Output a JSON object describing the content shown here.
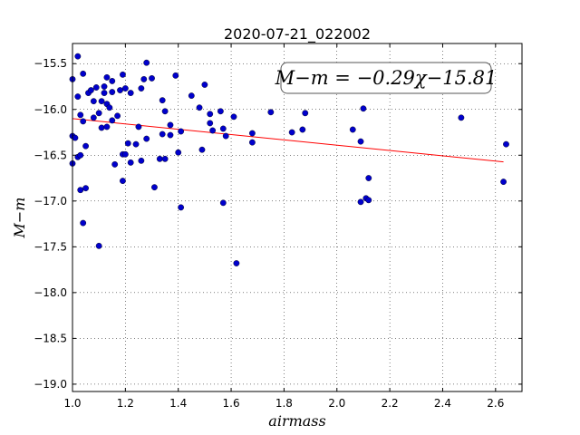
{
  "chart_data": {
    "type": "scatter",
    "title": "2020-07-21_022002",
    "xlabel": "airmass",
    "ylabel": "M−m",
    "xlim": [
      1.0,
      2.7
    ],
    "ylim": [
      -19.08,
      -15.28
    ],
    "x_ticks": [
      1.0,
      1.2,
      1.4,
      1.6,
      1.8,
      2.0,
      2.2,
      2.4,
      2.6
    ],
    "x_tick_labels": [
      "1.0",
      "1.2",
      "1.4",
      "1.6",
      "1.8",
      "2.0",
      "2.2",
      "2.4",
      "2.6"
    ],
    "y_ticks": [
      -15.5,
      -16.0,
      -16.5,
      -17.0,
      -17.5,
      -18.0,
      -18.5,
      -19.0
    ],
    "y_tick_labels": [
      "−15.5",
      "−16.0",
      "−16.5",
      "−17.0",
      "−17.5",
      "−18.0",
      "−18.5",
      "−19.0"
    ],
    "grid": true,
    "annotation": "M−m = −0.29χ−15.81",
    "point_color": "#0000cc",
    "fit_color": "#ff0000",
    "fit_line": {
      "slope": -0.29,
      "intercept": -15.81,
      "x_range": [
        1.0,
        2.63
      ]
    },
    "points": [
      [
        1.0,
        -15.67
      ],
      [
        1.0,
        -16.29
      ],
      [
        1.0,
        -16.59
      ],
      [
        1.01,
        -16.31
      ],
      [
        1.02,
        -15.42
      ],
      [
        1.02,
        -15.86
      ],
      [
        1.02,
        -16.52
      ],
      [
        1.03,
        -16.06
      ],
      [
        1.03,
        -16.5
      ],
      [
        1.03,
        -16.88
      ],
      [
        1.04,
        -15.61
      ],
      [
        1.04,
        -16.13
      ],
      [
        1.04,
        -17.24
      ],
      [
        1.05,
        -16.4
      ],
      [
        1.05,
        -16.86
      ],
      [
        1.06,
        -15.82
      ],
      [
        1.07,
        -15.79
      ],
      [
        1.08,
        -15.91
      ],
      [
        1.08,
        -16.09
      ],
      [
        1.09,
        -15.76
      ],
      [
        1.1,
        -16.04
      ],
      [
        1.1,
        -17.49
      ],
      [
        1.11,
        -15.91
      ],
      [
        1.11,
        -16.2
      ],
      [
        1.12,
        -15.75
      ],
      [
        1.12,
        -15.82
      ],
      [
        1.13,
        -15.94
      ],
      [
        1.13,
        -16.19
      ],
      [
        1.13,
        -15.65
      ],
      [
        1.14,
        -15.98
      ],
      [
        1.15,
        -15.69
      ],
      [
        1.15,
        -15.81
      ],
      [
        1.15,
        -16.12
      ],
      [
        1.16,
        -16.6
      ],
      [
        1.17,
        -16.07
      ],
      [
        1.18,
        -15.79
      ],
      [
        1.19,
        -15.62
      ],
      [
        1.19,
        -16.49
      ],
      [
        1.19,
        -16.78
      ],
      [
        1.2,
        -16.49
      ],
      [
        1.2,
        -15.77
      ],
      [
        1.21,
        -16.37
      ],
      [
        1.22,
        -16.58
      ],
      [
        1.22,
        -15.82
      ],
      [
        1.24,
        -16.38
      ],
      [
        1.25,
        -16.19
      ],
      [
        1.26,
        -16.56
      ],
      [
        1.26,
        -15.77
      ],
      [
        1.27,
        -15.67
      ],
      [
        1.28,
        -15.49
      ],
      [
        1.28,
        -16.32
      ],
      [
        1.3,
        -15.66
      ],
      [
        1.31,
        -16.85
      ],
      [
        1.33,
        -16.54
      ],
      [
        1.34,
        -15.9
      ],
      [
        1.34,
        -16.27
      ],
      [
        1.35,
        -16.02
      ],
      [
        1.35,
        -16.54
      ],
      [
        1.37,
        -16.17
      ],
      [
        1.37,
        -16.28
      ],
      [
        1.39,
        -15.63
      ],
      [
        1.4,
        -16.47
      ],
      [
        1.41,
        -16.24
      ],
      [
        1.41,
        -17.07
      ],
      [
        1.45,
        -15.85
      ],
      [
        1.48,
        -15.98
      ],
      [
        1.49,
        -16.44
      ],
      [
        1.5,
        -15.73
      ],
      [
        1.52,
        -16.15
      ],
      [
        1.52,
        -16.05
      ],
      [
        1.53,
        -16.23
      ],
      [
        1.56,
        -16.02
      ],
      [
        1.57,
        -16.21
      ],
      [
        1.57,
        -17.02
      ],
      [
        1.58,
        -16.29
      ],
      [
        1.61,
        -16.08
      ],
      [
        1.62,
        -17.68
      ],
      [
        1.68,
        -16.26
      ],
      [
        1.68,
        -16.36
      ],
      [
        1.75,
        -16.03
      ],
      [
        1.83,
        -16.25
      ],
      [
        1.87,
        -16.22
      ],
      [
        1.88,
        -16.04
      ],
      [
        2.06,
        -16.22
      ],
      [
        2.09,
        -16.35
      ],
      [
        2.09,
        -17.01
      ],
      [
        2.1,
        -15.99
      ],
      [
        2.11,
        -16.97
      ],
      [
        2.12,
        -16.75
      ],
      [
        2.12,
        -16.99
      ],
      [
        2.47,
        -16.09
      ],
      [
        2.63,
        -16.79
      ],
      [
        2.64,
        -16.38
      ]
    ]
  }
}
